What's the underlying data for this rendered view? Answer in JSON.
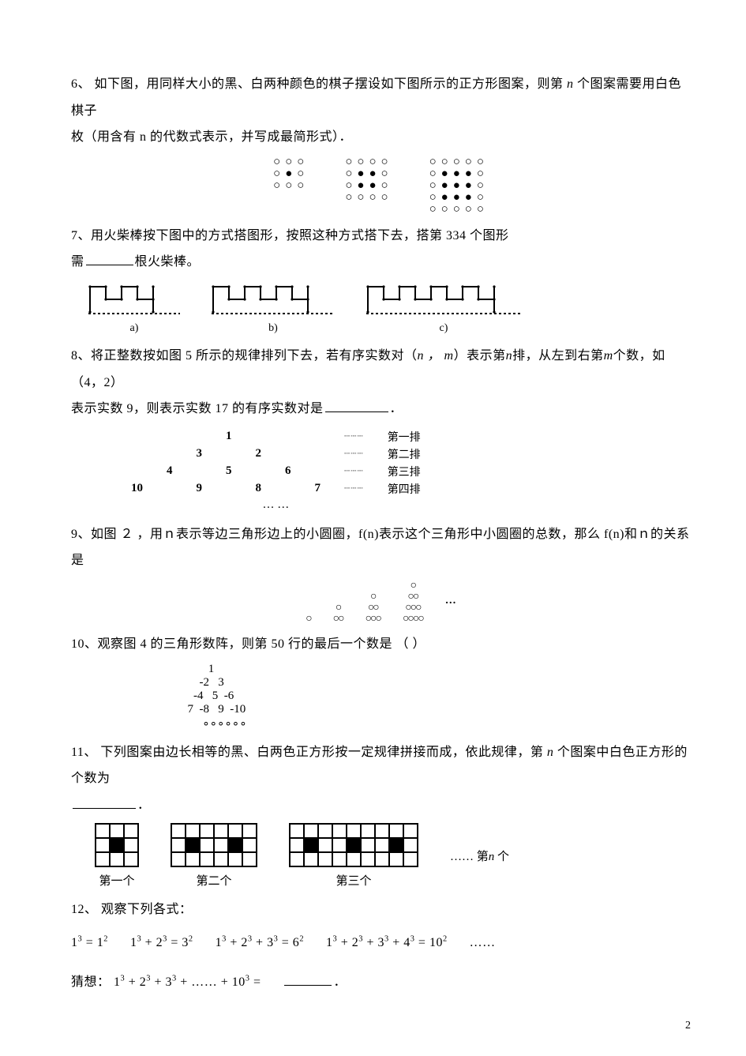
{
  "q6": {
    "text_a": "6、 如下图，用同样大小的黑、白两种颜色的棋子摆设如下图所示的正方形图案，则第 ",
    "var_n": "n",
    "text_b": " 个图案需要用白色棋子",
    "text_c": "枚（用含有 n 的代数式表示，并写成最简形式）．",
    "grids": [
      [
        "ooo",
        "obo",
        "ooo"
      ],
      [
        "oooo",
        "obbo",
        "obbo",
        "oooo"
      ],
      [
        "ooooo",
        "obbbo",
        "obbbo",
        "obbbo",
        "ooooo"
      ]
    ]
  },
  "q7": {
    "text_a": "7、用火柴棒按下图中的方式搭图形，按照这种方式搭下去，搭第 334 个图形",
    "text_b": "需",
    "text_c": "根火柴棒。",
    "labels": [
      "a)",
      "b)",
      "c)"
    ]
  },
  "q8": {
    "text_a": "8、将正整数按如图 5 所示的规律排列下去，若有序实数对（",
    "nm": "n ， m",
    "text_b": "）表示第",
    "n2": "n",
    "text_c": "排，从左到右第",
    "m2": "m",
    "text_d": "个数，如（4，2）",
    "text_e": "表示实数 9，则表示实数 17 的有序实数对是",
    "period": "．",
    "rows": [
      {
        "nums": [
          "",
          "",
          "",
          "1",
          "",
          "",
          ""
        ],
        "label": "第一排"
      },
      {
        "nums": [
          "",
          "",
          "3",
          "",
          "2",
          "",
          ""
        ],
        "label": "第二排"
      },
      {
        "nums": [
          "",
          "4",
          "",
          "5",
          "",
          "6",
          ""
        ],
        "label": "第三排"
      },
      {
        "nums": [
          "10",
          "",
          "9",
          "",
          "8",
          "",
          "7"
        ],
        "label": "第四排"
      }
    ],
    "ellipsis": "… …"
  },
  "q9": {
    "text_a": "9、如图  ２ ，用ｎ表示等边三角形边上的小圆圈，f(n)表示这个三角形中小圆圈的总数，那么 f(n)和ｎ的关系是",
    "triangles": [
      [
        "○"
      ],
      [
        "○",
        "○○"
      ],
      [
        "○",
        "○○",
        "○○○"
      ],
      [
        "○",
        "○○",
        "○○○",
        "○○○○"
      ]
    ],
    "dots": "…"
  },
  "q10": {
    "text_a": "10、观察图 4 的三角形数阵，则第 50 行的最后一个数是   （       ）",
    "rows": [
      "         1",
      "      -2   3",
      "    -4   5  -6",
      "  7  -8   9  -10",
      "       ∘∘∘∘∘∘"
    ]
  },
  "q11": {
    "text_a": "11、 下列图案由边长相等的黑、白两色正方形按一定规律拼接而成，依此规律，第 ",
    "var_n": "n",
    "text_b": " 个图案中白色正方形的个数为",
    "period": "．",
    "caps": [
      "第一个",
      "第二个",
      "第三个"
    ],
    "after": "……   第",
    "after_n": "n",
    "after2": " 个",
    "grids": [
      {
        "cols": 3,
        "black": [
          [
            1,
            1
          ]
        ]
      },
      {
        "cols": 6,
        "black": [
          [
            1,
            1
          ],
          [
            1,
            4
          ]
        ]
      },
      {
        "cols": 9,
        "black": [
          [
            1,
            1
          ],
          [
            1,
            4
          ],
          [
            1,
            7
          ]
        ]
      }
    ]
  },
  "q12": {
    "head": "12、 观察下列各式：",
    "eqs": [
      "1^3 = 1^2",
      "1^3 + 2^3 = 3^2",
      "1^3 + 2^3 + 3^3 = 6^2",
      "1^3 + 2^3 + 3^3 + 4^3 = 10^2",
      "……"
    ],
    "guess_a": "猜想：",
    "guess_b": "1^3 + 2^3 + 3^3 + …… + 10^3 = ",
    "period": "．"
  },
  "page_number": "2"
}
